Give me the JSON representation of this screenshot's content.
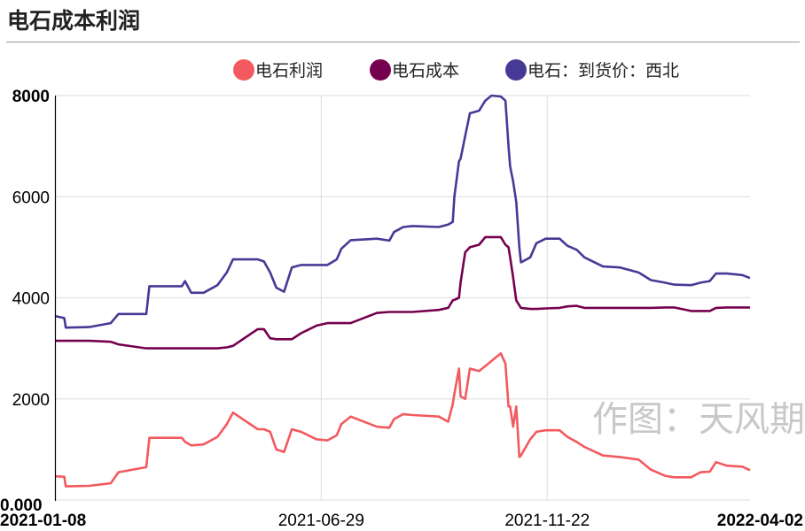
{
  "title": "电石成本利润",
  "watermark": "作图：天风期",
  "chart_data": {
    "type": "line",
    "title": "电石成本利润",
    "xlabel": "",
    "ylabel": "",
    "ylim": [
      0,
      8000
    ],
    "xlim": [
      "2021-01-08",
      "2022-04-02"
    ],
    "yticks": [
      "0.000",
      "2000",
      "4000",
      "6000",
      "8000"
    ],
    "xticks": [
      "2021-01-08",
      "2021-06-29",
      "2021-11-22",
      "2022-04-02"
    ],
    "grid": true,
    "legend": "top-center",
    "x": [
      "2021-01-08",
      "2021-01-14",
      "2021-01-15",
      "2021-01-30",
      "2021-02-13",
      "2021-02-18",
      "2021-03-08",
      "2021-03-10",
      "2021-03-31",
      "2021-04-02",
      "2021-04-06",
      "2021-04-14",
      "2021-04-23",
      "2021-04-29",
      "2021-05-03",
      "2021-05-19",
      "2021-05-23",
      "2021-05-27",
      "2021-05-31",
      "2021-06-05",
      "2021-06-10",
      "2021-06-16",
      "2021-06-26",
      "2021-07-03",
      "2021-07-09",
      "2021-07-12",
      "2021-07-18",
      "2021-08-04",
      "2021-08-12",
      "2021-08-15",
      "2021-08-21",
      "2021-08-27",
      "2021-09-13",
      "2021-09-19",
      "2021-09-22",
      "2021-09-23",
      "2021-09-26",
      "2021-09-27",
      "2021-09-30",
      "2021-10-03",
      "2021-10-09",
      "2021-10-13",
      "2021-10-17",
      "2021-10-23",
      "2021-10-26",
      "2021-10-28",
      "2021-10-29",
      "2021-10-31",
      "2021-11-02",
      "2021-11-04",
      "2021-11-05",
      "2021-11-11",
      "2021-11-15",
      "2021-11-21",
      "2021-11-30",
      "2021-12-05",
      "2021-12-11",
      "2021-12-16",
      "2021-12-28",
      "2022-01-08",
      "2022-01-20",
      "2022-01-28",
      "2022-02-06",
      "2022-02-12",
      "2022-02-23",
      "2022-03-01",
      "2022-03-07",
      "2022-03-11",
      "2022-03-18",
      "2022-03-28",
      "2022-04-02"
    ],
    "series": [
      {
        "name": "电石利润",
        "color": "#f25a5f",
        "values": [
          470,
          460,
          270,
          280,
          330,
          550,
          650,
          1230,
          1230,
          1150,
          1080,
          1100,
          1250,
          1500,
          1730,
          1400,
          1400,
          1350,
          1000,
          950,
          1400,
          1350,
          1200,
          1180,
          1280,
          1500,
          1650,
          1450,
          1430,
          1600,
          1700,
          1680,
          1650,
          1550,
          1900,
          2100,
          2600,
          2050,
          2000,
          2600,
          2550,
          2650,
          2750,
          2900,
          2700,
          1850,
          1850,
          1450,
          1850,
          850,
          880,
          1200,
          1350,
          1380,
          1380,
          1250,
          1150,
          1050,
          880,
          850,
          800,
          600,
          480,
          450,
          450,
          550,
          560,
          750,
          680,
          660,
          590
        ]
      },
      {
        "name": "电石成本",
        "color": "#75004f",
        "values": [
          3150,
          3150,
          3150,
          3150,
          3130,
          3080,
          3000,
          3000,
          3000,
          3000,
          3000,
          3000,
          3000,
          3020,
          3050,
          3380,
          3380,
          3200,
          3180,
          3180,
          3180,
          3300,
          3450,
          3500,
          3500,
          3500,
          3500,
          3700,
          3720,
          3720,
          3720,
          3720,
          3760,
          3800,
          3950,
          3960,
          4000,
          4300,
          4900,
          5000,
          5050,
          5200,
          5200,
          5200,
          5050,
          5000,
          4800,
          4400,
          3950,
          3850,
          3800,
          3780,
          3780,
          3790,
          3800,
          3830,
          3840,
          3800,
          3800,
          3800,
          3800,
          3800,
          3810,
          3810,
          3740,
          3740,
          3740,
          3800,
          3810,
          3810,
          3810
        ]
      },
      {
        "name": "电石：到货价：西北",
        "color": "#463a96",
        "values": [
          3640,
          3600,
          3410,
          3420,
          3500,
          3680,
          3680,
          4230,
          4230,
          4330,
          4100,
          4100,
          4250,
          4500,
          4760,
          4760,
          4720,
          4500,
          4200,
          4120,
          4600,
          4650,
          4650,
          4650,
          4760,
          4970,
          5140,
          5170,
          5130,
          5300,
          5400,
          5420,
          5400,
          5450,
          5500,
          6000,
          6700,
          6750,
          7200,
          7650,
          7700,
          7900,
          8000,
          7980,
          7900,
          7000,
          6600,
          6300,
          5900,
          5000,
          4700,
          4800,
          5080,
          5170,
          5170,
          5030,
          4950,
          4800,
          4620,
          4600,
          4500,
          4350,
          4300,
          4260,
          4250,
          4300,
          4330,
          4480,
          4480,
          4450,
          4390
        ]
      }
    ]
  }
}
